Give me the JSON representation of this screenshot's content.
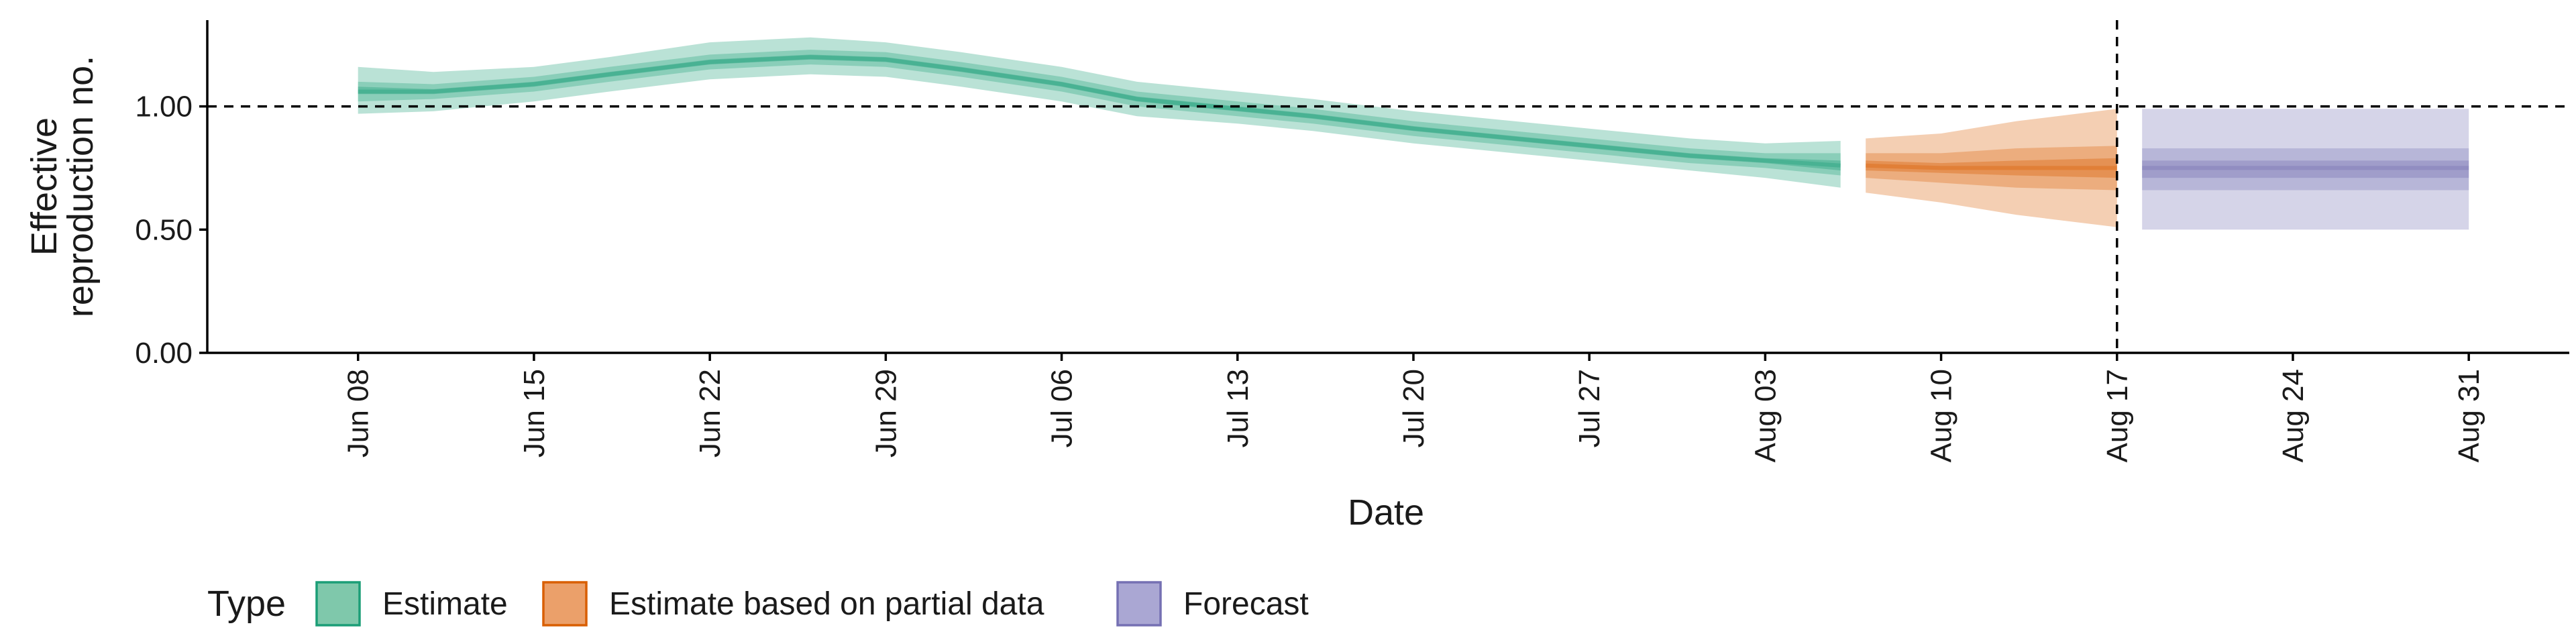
{
  "chart_data": {
    "type": "area",
    "xlabel": "Date",
    "ylabel_lines": [
      "Effective",
      "reproduction no."
    ],
    "ylim": [
      0,
      1.35
    ],
    "xlim": [
      "2020-06-02",
      "2020-09-04"
    ],
    "y_ticks": [
      {
        "value": 0.0,
        "label": "0.00"
      },
      {
        "value": 0.5,
        "label": "0.50"
      },
      {
        "value": 1.0,
        "label": "1.00"
      }
    ],
    "x_ticks": [
      {
        "date": "2020-06-08",
        "label": "Jun 08"
      },
      {
        "date": "2020-06-15",
        "label": "Jun 15"
      },
      {
        "date": "2020-06-22",
        "label": "Jun 22"
      },
      {
        "date": "2020-06-29",
        "label": "Jun 29"
      },
      {
        "date": "2020-07-06",
        "label": "Jul 06"
      },
      {
        "date": "2020-07-13",
        "label": "Jul 13"
      },
      {
        "date": "2020-07-20",
        "label": "Jul 20"
      },
      {
        "date": "2020-07-27",
        "label": "Jul 27"
      },
      {
        "date": "2020-08-03",
        "label": "Aug 03"
      },
      {
        "date": "2020-08-10",
        "label": "Aug 10"
      },
      {
        "date": "2020-08-17",
        "label": "Aug 17"
      },
      {
        "date": "2020-08-24",
        "label": "Aug 24"
      },
      {
        "date": "2020-08-31",
        "label": "Aug 31"
      }
    ],
    "reference_lines": {
      "hline_y": 1.0,
      "vline_date": "2020-08-17"
    },
    "grid": false,
    "legend": {
      "title": "Type",
      "position": "bottom-left",
      "items": [
        {
          "label": "Estimate",
          "fill": "#7fc8ab",
          "stroke": "#1b9e77"
        },
        {
          "label": "Estimate based on partial data",
          "fill": "#eba06a",
          "stroke": "#d95f02"
        },
        {
          "label": "Forecast",
          "fill": "#aaa7d3",
          "stroke": "#7570b3"
        }
      ]
    },
    "series": [
      {
        "name": "Estimate",
        "color": "#1b9e77",
        "points": [
          {
            "date": "2020-06-08",
            "median": 1.06,
            "lower_90": 0.97,
            "upper_90": 1.16,
            "lower_50": 1.02,
            "upper_50": 1.1,
            "lower_20": 1.05,
            "upper_20": 1.08
          },
          {
            "date": "2020-06-11",
            "median": 1.06,
            "lower_90": 0.98,
            "upper_90": 1.14,
            "lower_50": 1.03,
            "upper_50": 1.09,
            "lower_20": 1.05,
            "upper_20": 1.07
          },
          {
            "date": "2020-06-15",
            "median": 1.09,
            "lower_90": 1.02,
            "upper_90": 1.16,
            "lower_50": 1.06,
            "upper_50": 1.12,
            "lower_20": 1.08,
            "upper_20": 1.1
          },
          {
            "date": "2020-06-18",
            "median": 1.13,
            "lower_90": 1.06,
            "upper_90": 1.2,
            "lower_50": 1.1,
            "upper_50": 1.16,
            "lower_20": 1.12,
            "upper_20": 1.14
          },
          {
            "date": "2020-06-22",
            "median": 1.18,
            "lower_90": 1.11,
            "upper_90": 1.26,
            "lower_50": 1.15,
            "upper_50": 1.21,
            "lower_20": 1.17,
            "upper_20": 1.19
          },
          {
            "date": "2020-06-26",
            "median": 1.2,
            "lower_90": 1.13,
            "upper_90": 1.28,
            "lower_50": 1.17,
            "upper_50": 1.23,
            "lower_20": 1.19,
            "upper_20": 1.21
          },
          {
            "date": "2020-06-29",
            "median": 1.19,
            "lower_90": 1.12,
            "upper_90": 1.26,
            "lower_50": 1.16,
            "upper_50": 1.22,
            "lower_20": 1.18,
            "upper_20": 1.2
          },
          {
            "date": "2020-07-02",
            "median": 1.15,
            "lower_90": 1.08,
            "upper_90": 1.22,
            "lower_50": 1.12,
            "upper_50": 1.18,
            "lower_20": 1.14,
            "upper_20": 1.16
          },
          {
            "date": "2020-07-06",
            "median": 1.09,
            "lower_90": 1.02,
            "upper_90": 1.16,
            "lower_50": 1.06,
            "upper_50": 1.12,
            "lower_20": 1.08,
            "upper_20": 1.1
          },
          {
            "date": "2020-07-09",
            "median": 1.03,
            "lower_90": 0.96,
            "upper_90": 1.1,
            "lower_50": 1.0,
            "upper_50": 1.06,
            "lower_20": 1.02,
            "upper_20": 1.04
          },
          {
            "date": "2020-07-13",
            "median": 0.99,
            "lower_90": 0.93,
            "upper_90": 1.06,
            "lower_50": 0.96,
            "upper_50": 1.02,
            "lower_20": 0.98,
            "upper_20": 1.0
          },
          {
            "date": "2020-07-16",
            "median": 0.96,
            "lower_90": 0.9,
            "upper_90": 1.03,
            "lower_50": 0.93,
            "upper_50": 0.99,
            "lower_20": 0.95,
            "upper_20": 0.97
          },
          {
            "date": "2020-07-20",
            "median": 0.91,
            "lower_90": 0.85,
            "upper_90": 0.98,
            "lower_50": 0.88,
            "upper_50": 0.94,
            "lower_20": 0.9,
            "upper_20": 0.92
          },
          {
            "date": "2020-07-24",
            "median": 0.87,
            "lower_90": 0.81,
            "upper_90": 0.94,
            "lower_50": 0.84,
            "upper_50": 0.9,
            "lower_20": 0.86,
            "upper_20": 0.88
          },
          {
            "date": "2020-07-27",
            "median": 0.84,
            "lower_90": 0.78,
            "upper_90": 0.91,
            "lower_50": 0.81,
            "upper_50": 0.87,
            "lower_20": 0.83,
            "upper_20": 0.85
          },
          {
            "date": "2020-07-31",
            "median": 0.8,
            "lower_90": 0.74,
            "upper_90": 0.87,
            "lower_50": 0.77,
            "upper_50": 0.83,
            "lower_20": 0.79,
            "upper_20": 0.81
          },
          {
            "date": "2020-08-03",
            "median": 0.78,
            "lower_90": 0.71,
            "upper_90": 0.85,
            "lower_50": 0.75,
            "upper_50": 0.81,
            "lower_20": 0.77,
            "upper_20": 0.79
          },
          {
            "date": "2020-08-06",
            "median": 0.76,
            "lower_90": 0.67,
            "upper_90": 0.86,
            "lower_50": 0.72,
            "upper_50": 0.81,
            "lower_20": 0.74,
            "upper_20": 0.78
          }
        ]
      },
      {
        "name": "Estimate based on partial data",
        "color": "#d95f02",
        "points": [
          {
            "date": "2020-08-07",
            "median": 0.76,
            "lower_90": 0.65,
            "upper_90": 0.87,
            "lower_50": 0.71,
            "upper_50": 0.81,
            "lower_20": 0.74,
            "upper_20": 0.78
          },
          {
            "date": "2020-08-10",
            "median": 0.75,
            "lower_90": 0.61,
            "upper_90": 0.89,
            "lower_50": 0.69,
            "upper_50": 0.81,
            "lower_20": 0.73,
            "upper_20": 0.77
          },
          {
            "date": "2020-08-13",
            "median": 0.75,
            "lower_90": 0.56,
            "upper_90": 0.94,
            "lower_50": 0.67,
            "upper_50": 0.83,
            "lower_20": 0.72,
            "upper_20": 0.78
          },
          {
            "date": "2020-08-17",
            "median": 0.75,
            "lower_90": 0.51,
            "upper_90": 0.99,
            "lower_50": 0.66,
            "upper_50": 0.84,
            "lower_20": 0.71,
            "upper_20": 0.79
          }
        ]
      },
      {
        "name": "Forecast",
        "color": "#7570b3",
        "points": [
          {
            "date": "2020-08-18",
            "median": 0.75,
            "lower_90": 0.5,
            "upper_90": 0.99,
            "lower_50": 0.66,
            "upper_50": 0.83,
            "lower_20": 0.71,
            "upper_20": 0.78
          },
          {
            "date": "2020-08-31",
            "median": 0.75,
            "lower_90": 0.5,
            "upper_90": 0.99,
            "lower_50": 0.66,
            "upper_50": 0.83,
            "lower_20": 0.71,
            "upper_20": 0.78
          }
        ]
      }
    ]
  }
}
